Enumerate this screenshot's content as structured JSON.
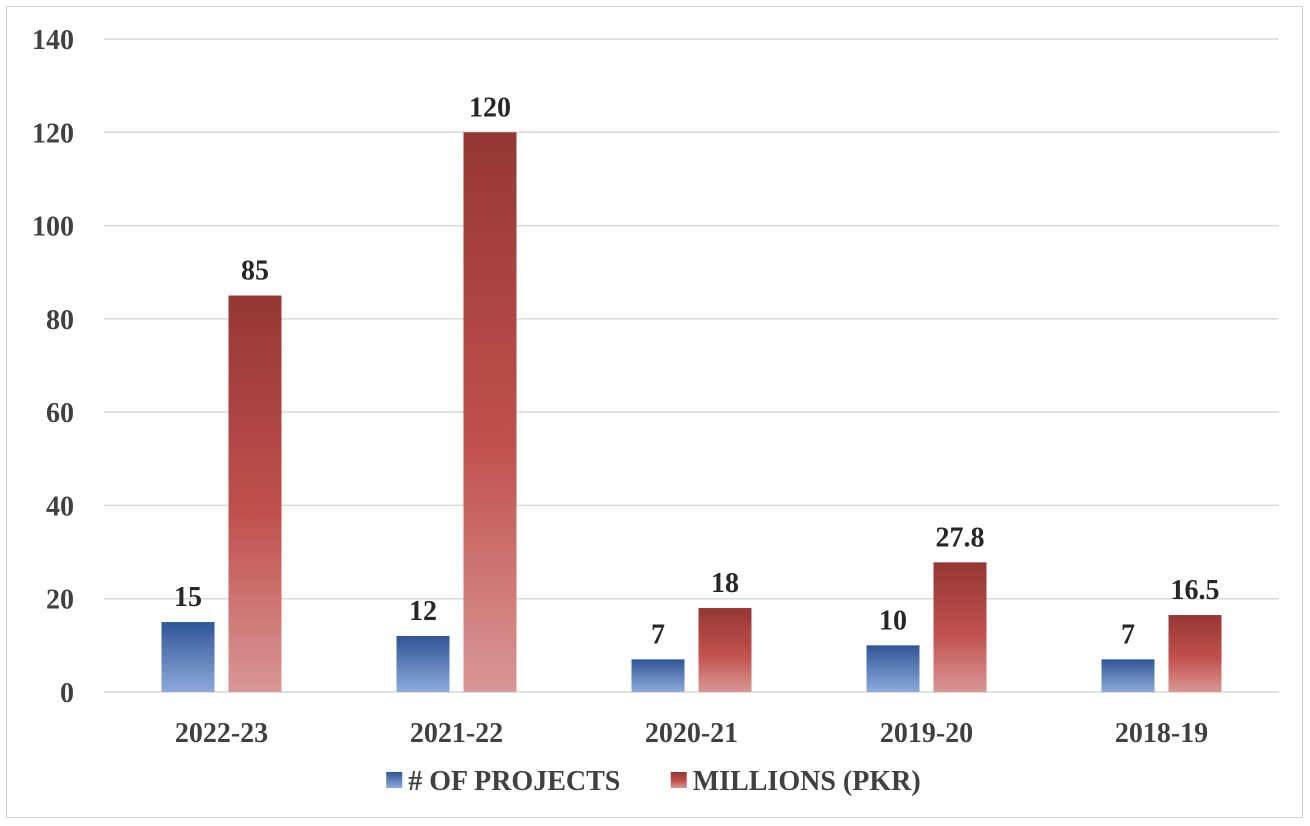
{
  "chart_data": {
    "type": "bar",
    "title": "",
    "xlabel": "",
    "ylabel": "",
    "categories": [
      "2022-23",
      "2021-22",
      "2020-21",
      "2019-20",
      "2018-19"
    ],
    "series": [
      {
        "name": "# OF PROJECTS",
        "values": [
          15,
          12,
          7,
          10,
          7
        ],
        "value_labels": [
          "15",
          "12",
          "7",
          "10",
          "7"
        ],
        "color": "#4472c4"
      },
      {
        "name": "MILLIONS (PKR)",
        "values": [
          85,
          120,
          18,
          27.8,
          16.5
        ],
        "value_labels": [
          "85",
          "120",
          "18",
          "27.8",
          "16.5"
        ],
        "color": "#c0504d"
      }
    ],
    "ylim": [
      0,
      140
    ],
    "y_ticks": [
      "0",
      "20",
      "40",
      "60",
      "80",
      "100",
      "120",
      "140"
    ],
    "grid": true,
    "legend_position": "bottom"
  }
}
